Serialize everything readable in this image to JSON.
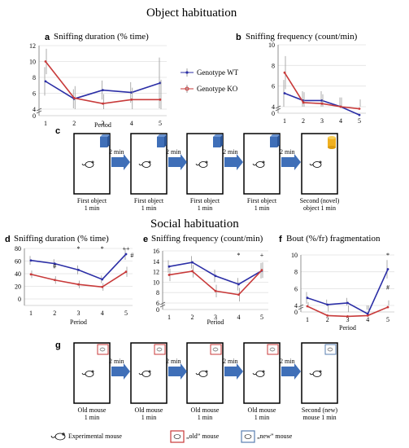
{
  "titles": {
    "object": "Object habituation",
    "social": "Social habituation"
  },
  "panel_letters": {
    "a": "a",
    "b": "b",
    "c": "c",
    "d": "d",
    "e": "e",
    "f": "f",
    "g": "g"
  },
  "panel_titles": {
    "a": "Sniffing duration (% time)",
    "b": "Sniffing frequency  (count/min)",
    "d": "Sniffing duration (% time)",
    "e": "Sniffing frequency  (count/min)",
    "f": "Bout (%/fr) fragmentation"
  },
  "legend_ab": {
    "wt": "Genotype WT",
    "ko": "Genotype KO"
  },
  "colors": {
    "wt": "#2b2ea6",
    "ko": "#c83a3a",
    "box_blue": "#3f6fb8",
    "box_yellow": "#f0b020",
    "arrow": "#3f6fb8"
  },
  "row_c": {
    "arrow_label": "2 min",
    "captions": [
      [
        "First object",
        "1 min"
      ],
      [
        "First object",
        "1 min"
      ],
      [
        "First object",
        "1 min"
      ],
      [
        "First object",
        "1 min"
      ],
      [
        "Second (novel)",
        "object 1 min"
      ]
    ]
  },
  "row_g": {
    "arrow_label": "2 min",
    "captions": [
      [
        "Old mouse",
        "1 min"
      ],
      [
        "Old mouse",
        "1 min"
      ],
      [
        "Old mouse",
        "1 min"
      ],
      [
        "Old mouse",
        "1 min"
      ],
      [
        "Second (new)",
        "mouse 1 min"
      ]
    ]
  },
  "bottom_legend": {
    "exp": "Experimental mouse",
    "old": "„old” mouse",
    "new": "„new” mouse"
  },
  "chart_data": [
    {
      "id": "a",
      "type": "line",
      "title": "Sniffing duration (% time)",
      "xlabel": "Period",
      "ylabel": "",
      "x": [
        1,
        2,
        3,
        4,
        5
      ],
      "ylim": [
        0,
        12
      ],
      "yticks": [
        0,
        4,
        6,
        8,
        10,
        12
      ],
      "axis_break": true,
      "series": [
        {
          "name": "Genotype WT",
          "values": [
            7.5,
            5.3,
            6.4,
            6.1,
            7.3
          ],
          "err": [
            1.8,
            1.2,
            1.2,
            1.3,
            3.2
          ]
        },
        {
          "name": "Genotype KO",
          "values": [
            10.0,
            5.4,
            4.7,
            5.2,
            5.2
          ],
          "err": [
            1.6,
            1.5,
            1.2,
            1.5,
            2.5
          ]
        }
      ],
      "annotations": []
    },
    {
      "id": "b",
      "type": "line",
      "title": "Sniffing frequency  (count/min)",
      "xlabel": "",
      "ylabel": "",
      "x": [
        1,
        2,
        3,
        4,
        5
      ],
      "ylim": [
        0,
        10
      ],
      "yticks": [
        0,
        4,
        6,
        8,
        10
      ],
      "axis_break": true,
      "series": [
        {
          "name": "Genotype WT",
          "values": [
            5.3,
            4.6,
            4.6,
            4.0,
            3.2
          ],
          "err": [
            1.3,
            0.9,
            0.9,
            0.9,
            0.8
          ]
        },
        {
          "name": "Genotype KO",
          "values": [
            7.3,
            4.4,
            4.3,
            4.0,
            3.8
          ],
          "err": [
            1.6,
            1.0,
            0.9,
            0.9,
            0.9
          ]
        }
      ],
      "annotations": []
    },
    {
      "id": "d",
      "type": "line",
      "title": "Sniffing duration (% time)",
      "xlabel": "Period",
      "ylabel": "",
      "x": [
        1,
        2,
        3,
        4,
        5
      ],
      "ylim": [
        0,
        80
      ],
      "yticks": [
        0,
        20,
        40,
        60,
        80
      ],
      "axis_break": false,
      "series": [
        {
          "name": "WT",
          "values": [
            61,
            56,
            46,
            31,
            71
          ],
          "err": [
            7,
            7,
            7,
            6,
            9
          ]
        },
        {
          "name": "KO",
          "values": [
            39,
            30,
            23,
            19,
            43
          ],
          "err": [
            6,
            6,
            6,
            6,
            8
          ]
        }
      ],
      "annotations": [
        {
          "x": 2,
          "text": "#",
          "y": 52
        },
        {
          "x": 3,
          "text": "*",
          "y": 80
        },
        {
          "x": 4,
          "text": "*",
          "y": 80
        },
        {
          "x": 5,
          "text": "++",
          "y": 80
        },
        {
          "x": 5.25,
          "text": "#",
          "y": 70
        }
      ]
    },
    {
      "id": "e",
      "type": "line",
      "title": "Sniffing frequency  (count/min)",
      "xlabel": "Period",
      "ylabel": "",
      "x": [
        1,
        2,
        3,
        4,
        5
      ],
      "ylim": [
        0,
        16
      ],
      "yticks": [
        0,
        6,
        8,
        10,
        12,
        14,
        16
      ],
      "axis_break": true,
      "series": [
        {
          "name": "WT",
          "values": [
            13,
            13.8,
            11.2,
            9.6,
            12.2
          ],
          "err": [
            1.2,
            1.2,
            1.2,
            1.2,
            1.5
          ]
        },
        {
          "name": "KO",
          "values": [
            11.4,
            12.1,
            8.3,
            7.6,
            12.3
          ],
          "err": [
            1.2,
            1.2,
            1.2,
            1.3,
            1.5
          ]
        }
      ],
      "annotations": [
        {
          "x": 4,
          "text": "*",
          "y": 15.2
        },
        {
          "x": 5,
          "text": "+",
          "y": 15.2
        }
      ]
    },
    {
      "id": "f",
      "type": "line",
      "title": "Bout (%/fr) fragmentation",
      "xlabel": "Period",
      "ylabel": "",
      "x": [
        1,
        2,
        3,
        4,
        5
      ],
      "ylim": [
        0,
        10
      ],
      "yticks": [
        0,
        4,
        6,
        8,
        10
      ],
      "axis_break": true,
      "series": [
        {
          "name": "WT",
          "values": [
            4.9,
            4.1,
            4.3,
            3.0,
            8.3
          ],
          "err": [
            0.7,
            0.6,
            0.6,
            0.5,
            1.1
          ]
        },
        {
          "name": "KO",
          "values": [
            3.9,
            2.8,
            2.7,
            2.8,
            3.8
          ],
          "err": [
            0.5,
            0.5,
            0.5,
            0.5,
            0.8
          ]
        }
      ],
      "annotations": [
        {
          "x": 5,
          "text": "*",
          "y": 10
        },
        {
          "x": 5,
          "text": "#",
          "y": 6.2
        }
      ]
    }
  ]
}
